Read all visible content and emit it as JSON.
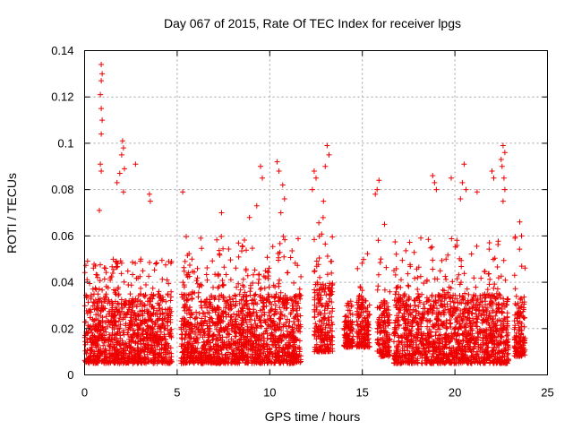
{
  "chart_data": {
    "type": "scatter",
    "title": "Day 067 of 2015, Rate Of TEC Index for receiver lpgs",
    "xlabel": "GPS time / hours",
    "ylabel": "ROTI / TECUs",
    "xlim": [
      0,
      25
    ],
    "ylim": [
      0,
      0.14
    ],
    "x_ticks": [
      0,
      5,
      10,
      15,
      20,
      25
    ],
    "x_tick_labels": [
      "0",
      "5",
      "10",
      "15",
      "20",
      "25"
    ],
    "y_ticks": [
      0,
      0.02,
      0.04,
      0.06,
      0.08,
      0.1,
      0.12,
      0.14
    ],
    "y_tick_labels": [
      "0",
      "0.02",
      "0.04",
      "0.06",
      "0.08",
      "0.1",
      "0.12",
      "0.14"
    ],
    "grid": true,
    "marker": "+",
    "marker_color": "#ee0000",
    "series": [
      {
        "name": "ROTI",
        "segments": [
          {
            "x_start": 0.0,
            "x_end": 4.7,
            "typical_range": [
              0.005,
              0.045
            ],
            "peak": 0.05
          },
          {
            "x_start": 5.2,
            "x_end": 11.7,
            "typical_range": [
              0.005,
              0.045
            ],
            "peak": 0.06
          },
          {
            "x_start": 12.4,
            "x_end": 13.4,
            "typical_range": [
              0.01,
              0.05
            ],
            "peak": 0.07
          },
          {
            "x_start": 14.0,
            "x_end": 14.5,
            "typical_range": [
              0.012,
              0.03
            ],
            "peak": 0.033
          },
          {
            "x_start": 14.7,
            "x_end": 15.4,
            "typical_range": [
              0.012,
              0.04
            ],
            "peak": 0.055
          },
          {
            "x_start": 15.8,
            "x_end": 16.5,
            "typical_range": [
              0.008,
              0.04
            ],
            "peak": 0.06
          },
          {
            "x_start": 16.7,
            "x_end": 22.9,
            "typical_range": [
              0.005,
              0.045
            ],
            "peak": 0.06
          },
          {
            "x_start": 23.2,
            "x_end": 23.8,
            "typical_range": [
              0.008,
              0.04
            ],
            "peak": 0.065
          }
        ],
        "notable_points": [
          {
            "x": 0.9,
            "y": 0.134
          },
          {
            "x": 0.95,
            "y": 0.13
          },
          {
            "x": 0.9,
            "y": 0.127
          },
          {
            "x": 0.85,
            "y": 0.121
          },
          {
            "x": 0.9,
            "y": 0.115
          },
          {
            "x": 0.95,
            "y": 0.11
          },
          {
            "x": 0.9,
            "y": 0.104
          },
          {
            "x": 0.85,
            "y": 0.091
          },
          {
            "x": 0.9,
            "y": 0.088
          },
          {
            "x": 0.8,
            "y": 0.071
          },
          {
            "x": 2.05,
            "y": 0.101
          },
          {
            "x": 2.1,
            "y": 0.098
          },
          {
            "x": 2.0,
            "y": 0.095
          },
          {
            "x": 2.15,
            "y": 0.089
          },
          {
            "x": 1.9,
            "y": 0.087
          },
          {
            "x": 2.1,
            "y": 0.079
          },
          {
            "x": 1.75,
            "y": 0.083
          },
          {
            "x": 2.75,
            "y": 0.091
          },
          {
            "x": 3.5,
            "y": 0.078
          },
          {
            "x": 3.55,
            "y": 0.075
          },
          {
            "x": 5.3,
            "y": 0.079
          },
          {
            "x": 7.4,
            "y": 0.07
          },
          {
            "x": 8.9,
            "y": 0.068
          },
          {
            "x": 9.5,
            "y": 0.09
          },
          {
            "x": 9.6,
            "y": 0.085
          },
          {
            "x": 9.3,
            "y": 0.073
          },
          {
            "x": 10.4,
            "y": 0.092
          },
          {
            "x": 10.5,
            "y": 0.088
          },
          {
            "x": 10.7,
            "y": 0.082
          },
          {
            "x": 10.8,
            "y": 0.076
          },
          {
            "x": 10.6,
            "y": 0.07
          },
          {
            "x": 12.4,
            "y": 0.088
          },
          {
            "x": 12.5,
            "y": 0.085
          },
          {
            "x": 12.3,
            "y": 0.08
          },
          {
            "x": 13.1,
            "y": 0.099
          },
          {
            "x": 13.2,
            "y": 0.095
          },
          {
            "x": 13.0,
            "y": 0.09
          },
          {
            "x": 12.9,
            "y": 0.075
          },
          {
            "x": 15.9,
            "y": 0.084
          },
          {
            "x": 15.8,
            "y": 0.08
          },
          {
            "x": 15.7,
            "y": 0.078
          },
          {
            "x": 16.2,
            "y": 0.065
          },
          {
            "x": 18.8,
            "y": 0.086
          },
          {
            "x": 18.9,
            "y": 0.083
          },
          {
            "x": 19.0,
            "y": 0.08
          },
          {
            "x": 19.8,
            "y": 0.085
          },
          {
            "x": 20.5,
            "y": 0.091
          },
          {
            "x": 20.4,
            "y": 0.083
          },
          {
            "x": 20.6,
            "y": 0.08
          },
          {
            "x": 20.3,
            "y": 0.076
          },
          {
            "x": 21.2,
            "y": 0.079
          },
          {
            "x": 22.0,
            "y": 0.088
          },
          {
            "x": 22.1,
            "y": 0.085
          },
          {
            "x": 22.6,
            "y": 0.099
          },
          {
            "x": 22.7,
            "y": 0.096
          },
          {
            "x": 22.5,
            "y": 0.093
          },
          {
            "x": 22.55,
            "y": 0.09
          },
          {
            "x": 22.65,
            "y": 0.085
          },
          {
            "x": 22.7,
            "y": 0.08
          },
          {
            "x": 22.6,
            "y": 0.075
          },
          {
            "x": 23.5,
            "y": 0.066
          },
          {
            "x": 23.6,
            "y": 0.06
          }
        ]
      }
    ]
  }
}
